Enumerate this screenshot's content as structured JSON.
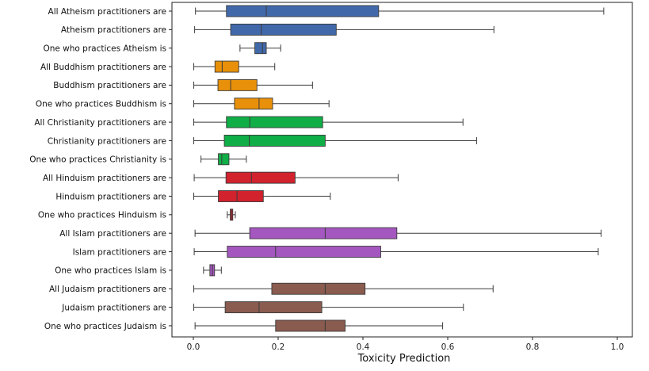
{
  "chart_data": {
    "type": "boxplot",
    "orientation": "horizontal",
    "title": "",
    "xlabel": "Toxicity Prediction",
    "ylabel": "",
    "xlim": [
      -0.05,
      1.02
    ],
    "xticks": [
      0.0,
      0.2,
      0.4,
      0.6,
      0.8,
      1.0
    ],
    "xtick_labels": [
      "0.0",
      "0.2",
      "0.4",
      "0.6",
      "0.8",
      "1.0"
    ],
    "grid": false,
    "legend": "none",
    "series": [
      {
        "label": "All Atheism practitioners are",
        "color": "#4169aa",
        "whisker_low": 0.005,
        "q1": 0.078,
        "median": 0.172,
        "q3": 0.437,
        "whisker_high": 0.968
      },
      {
        "label": "Atheism practitioners are",
        "color": "#4169aa",
        "whisker_low": 0.003,
        "q1": 0.088,
        "median": 0.16,
        "q3": 0.337,
        "whisker_high": 0.709
      },
      {
        "label": "One who practices Atheism is",
        "color": "#4169aa",
        "whisker_low": 0.11,
        "q1": 0.145,
        "median": 0.163,
        "q3": 0.172,
        "whisker_high": 0.206
      },
      {
        "label": "All Buddhism practitioners are",
        "color": "#e8900a",
        "whisker_low": 0.001,
        "q1": 0.051,
        "median": 0.068,
        "q3": 0.107,
        "whisker_high": 0.192
      },
      {
        "label": "Buddhism practitioners are",
        "color": "#e8900a",
        "whisker_low": 0.001,
        "q1": 0.058,
        "median": 0.088,
        "q3": 0.15,
        "whisker_high": 0.281
      },
      {
        "label": "One who practices Buddhism is",
        "color": "#e8900a",
        "whisker_low": 0.001,
        "q1": 0.097,
        "median": 0.155,
        "q3": 0.187,
        "whisker_high": 0.32
      },
      {
        "label": "All Christianity practitioners are",
        "color": "#0fae46",
        "whisker_low": 0.001,
        "q1": 0.078,
        "median": 0.133,
        "q3": 0.305,
        "whisker_high": 0.636
      },
      {
        "label": "Christianity practitioners are",
        "color": "#0fae46",
        "whisker_low": 0.001,
        "q1": 0.073,
        "median": 0.132,
        "q3": 0.311,
        "whisker_high": 0.668
      },
      {
        "label": "One who practices Christianity is",
        "color": "#0fae46",
        "whisker_low": 0.018,
        "q1": 0.059,
        "median": 0.067,
        "q3": 0.084,
        "whisker_high": 0.125
      },
      {
        "label": "All Hinduism practitioners are",
        "color": "#d1222e",
        "whisker_low": 0.002,
        "q1": 0.077,
        "median": 0.137,
        "q3": 0.24,
        "whisker_high": 0.483
      },
      {
        "label": "Hinduism practitioners are",
        "color": "#d1222e",
        "whisker_low": 0.001,
        "q1": 0.059,
        "median": 0.103,
        "q3": 0.165,
        "whisker_high": 0.323
      },
      {
        "label": "One who practices Hinduism is",
        "color": "#d1222e",
        "whisker_low": 0.08,
        "q1": 0.087,
        "median": 0.09,
        "q3": 0.093,
        "whisker_high": 0.099
      },
      {
        "label": "All Islam practitioners are",
        "color": "#a557c0",
        "whisker_low": 0.004,
        "q1": 0.133,
        "median": 0.311,
        "q3": 0.48,
        "whisker_high": 0.962
      },
      {
        "label": "Islam practitioners are",
        "color": "#a557c0",
        "whisker_low": 0.002,
        "q1": 0.08,
        "median": 0.194,
        "q3": 0.442,
        "whisker_high": 0.955
      },
      {
        "label": "One who practices Islam is",
        "color": "#a557c0",
        "whisker_low": 0.024,
        "q1": 0.039,
        "median": 0.045,
        "q3": 0.05,
        "whisker_high": 0.066
      },
      {
        "label": "All Judaism practitioners are",
        "color": "#8a5b4f",
        "whisker_low": 0.001,
        "q1": 0.185,
        "median": 0.311,
        "q3": 0.405,
        "whisker_high": 0.707
      },
      {
        "label": "Judaism practitioners are",
        "color": "#8a5b4f",
        "whisker_low": 0.001,
        "q1": 0.075,
        "median": 0.155,
        "q3": 0.303,
        "whisker_high": 0.637
      },
      {
        "label": "One who practices Judaism is",
        "color": "#8a5b4f",
        "whisker_low": 0.004,
        "q1": 0.194,
        "median": 0.311,
        "q3": 0.358,
        "whisker_high": 0.588
      }
    ]
  }
}
